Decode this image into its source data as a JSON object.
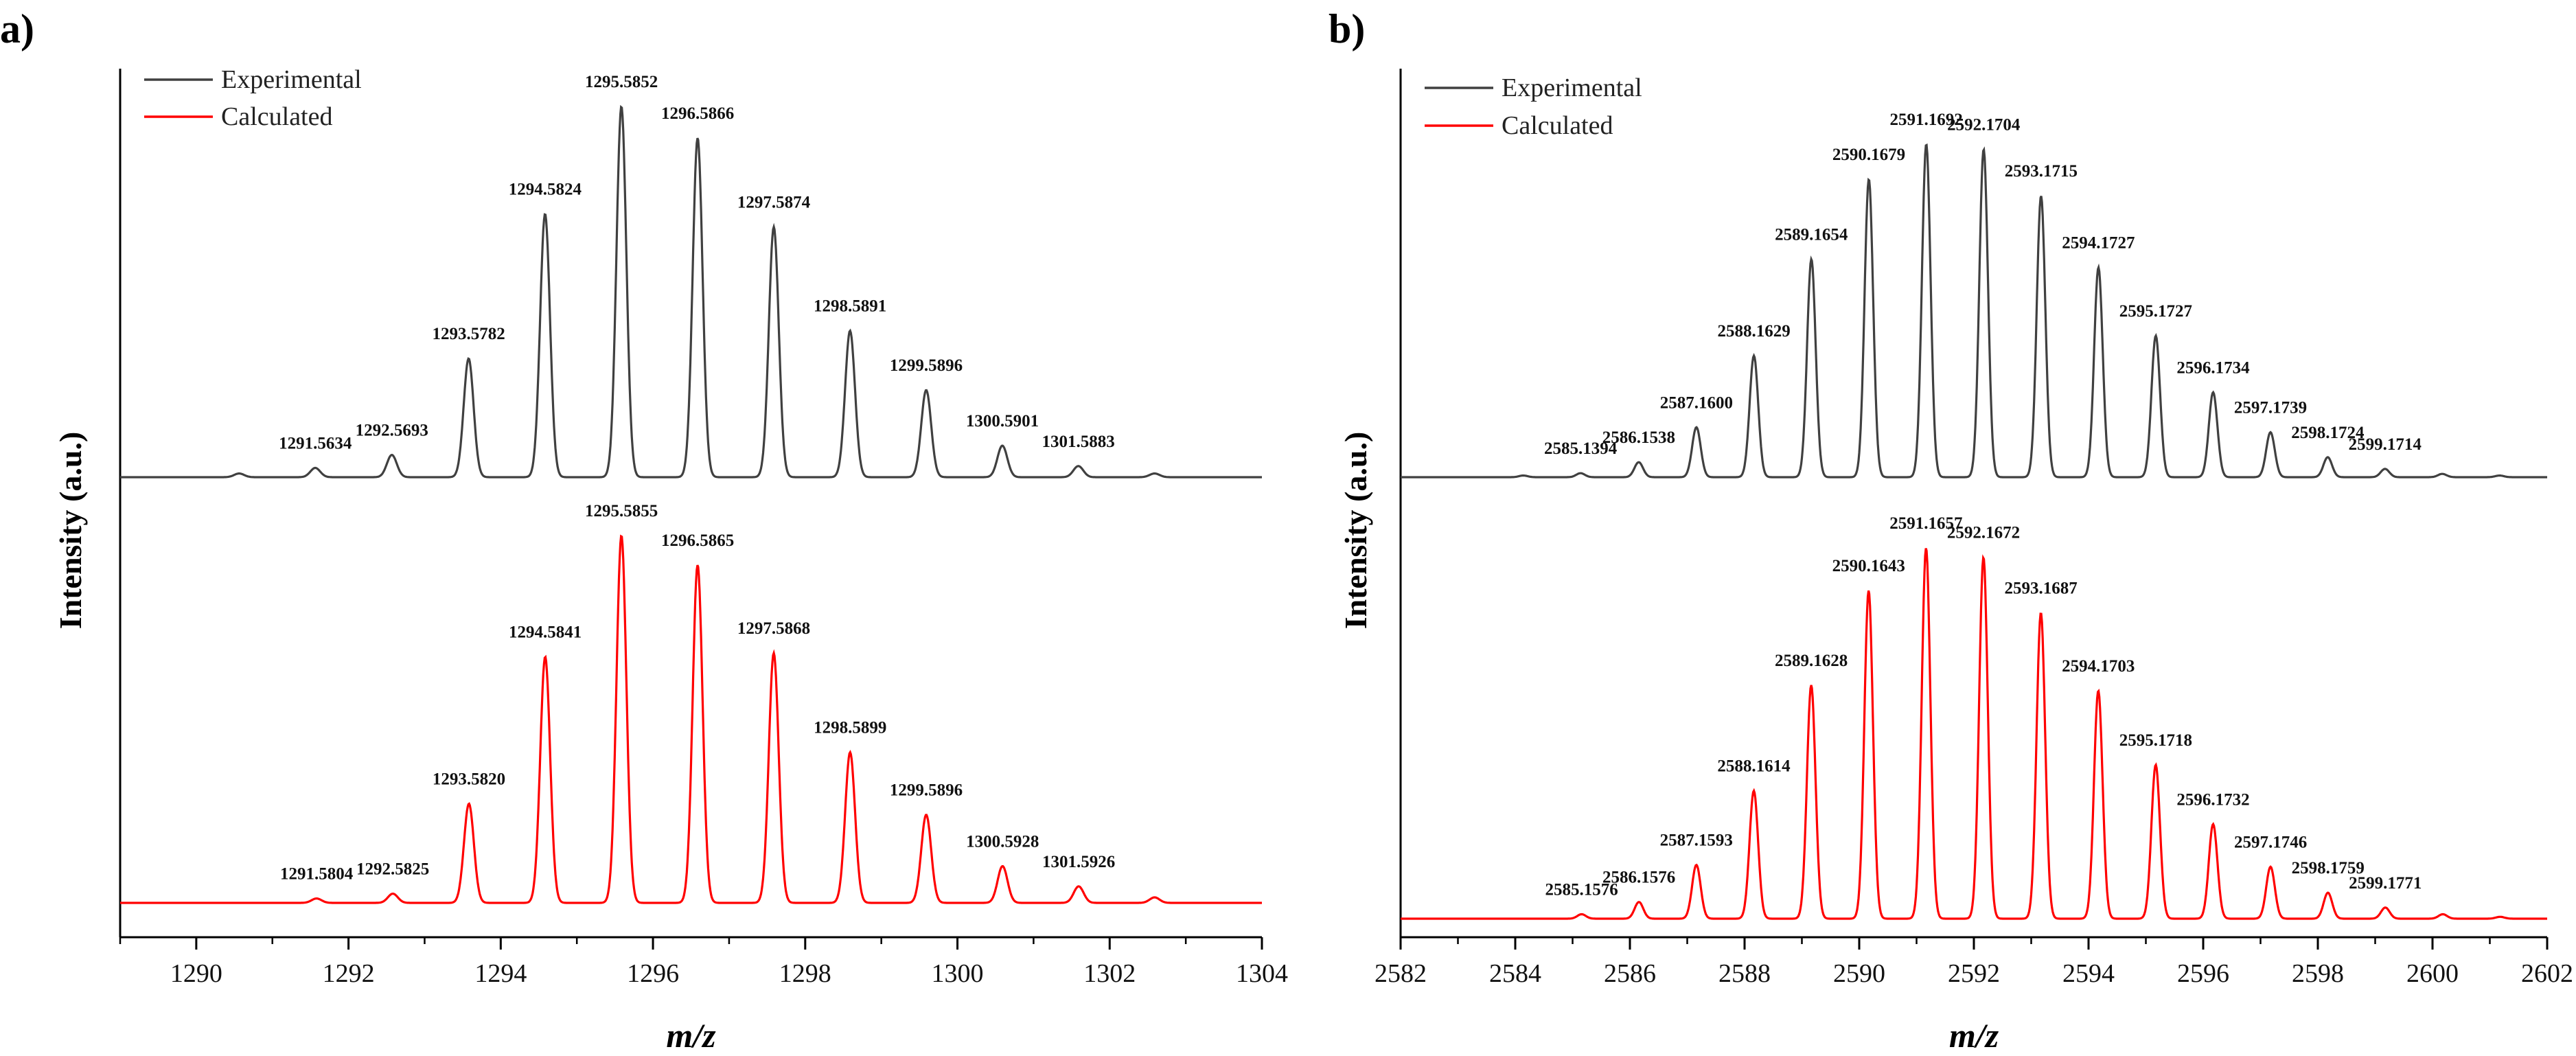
{
  "chart_data": [
    {
      "type": "line",
      "panel_label": "a)",
      "xlabel": "m/z",
      "ylabel": "Intensity (a.u.)",
      "xlim": [
        1289,
        1304
      ],
      "xticks": [
        1290,
        1292,
        1294,
        1296,
        1298,
        1300,
        1302,
        1304
      ],
      "legend": {
        "placement": "top-left",
        "entries": [
          {
            "name": "Experimental",
            "color": "#404040"
          },
          {
            "name": "Calculated",
            "color": "#ff0000"
          }
        ]
      },
      "series": [
        {
          "name": "Experimental",
          "color": "#404040",
          "peaks": [
            {
              "x": 1290.5634,
              "y": 0.01
            },
            {
              "x": 1291.5634,
              "y": 0.025,
              "label": "1291.5634"
            },
            {
              "x": 1292.5693,
              "y": 0.06,
              "label": "1292.5693"
            },
            {
              "x": 1293.5782,
              "y": 0.32,
              "label": "1293.5782"
            },
            {
              "x": 1294.5824,
              "y": 0.71,
              "label": "1294.5824"
            },
            {
              "x": 1295.5852,
              "y": 1.0,
              "label": "1295.5852"
            },
            {
              "x": 1296.5866,
              "y": 0.915,
              "label": "1296.5866"
            },
            {
              "x": 1297.5874,
              "y": 0.675,
              "label": "1297.5874"
            },
            {
              "x": 1298.5891,
              "y": 0.395,
              "label": "1298.5891"
            },
            {
              "x": 1299.5896,
              "y": 0.235,
              "label": "1299.5896"
            },
            {
              "x": 1300.5901,
              "y": 0.085,
              "label": "1300.5901"
            },
            {
              "x": 1301.5883,
              "y": 0.03,
              "label": "1301.5883"
            },
            {
              "x": 1302.59,
              "y": 0.01
            }
          ]
        },
        {
          "name": "Calculated",
          "color": "#ff0000",
          "peaks": [
            {
              "x": 1291.5804,
              "y": 0.012,
              "label": "1291.5804"
            },
            {
              "x": 1292.5825,
              "y": 0.025,
              "label": "1292.5825"
            },
            {
              "x": 1293.582,
              "y": 0.27,
              "label": "1293.5820"
            },
            {
              "x": 1294.5841,
              "y": 0.67,
              "label": "1294.5841"
            },
            {
              "x": 1295.5855,
              "y": 1.0,
              "label": "1295.5855"
            },
            {
              "x": 1296.5865,
              "y": 0.92,
              "label": "1296.5865"
            },
            {
              "x": 1297.5868,
              "y": 0.68,
              "label": "1297.5868"
            },
            {
              "x": 1298.5899,
              "y": 0.41,
              "label": "1298.5899"
            },
            {
              "x": 1299.5896,
              "y": 0.24,
              "label": "1299.5896"
            },
            {
              "x": 1300.5928,
              "y": 0.1,
              "label": "1300.5928"
            },
            {
              "x": 1301.5926,
              "y": 0.045,
              "label": "1301.5926"
            },
            {
              "x": 1302.59,
              "y": 0.015
            }
          ]
        }
      ]
    },
    {
      "type": "line",
      "panel_label": "b)",
      "xlabel": "m/z",
      "ylabel": "Intensity (a.u.)",
      "xlim": [
        2582,
        2602
      ],
      "xticks": [
        2582,
        2584,
        2586,
        2588,
        2590,
        2592,
        2594,
        2596,
        2598,
        2600,
        2602
      ],
      "legend": {
        "placement": "top-left",
        "entries": [
          {
            "name": "Experimental",
            "color": "#404040"
          },
          {
            "name": "Calculated",
            "color": "#ff0000"
          }
        ]
      },
      "series": [
        {
          "name": "Experimental",
          "color": "#404040",
          "peaks": [
            {
              "x": 2584.14,
              "y": 0.005
            },
            {
              "x": 2585.1394,
              "y": 0.012,
              "label": "2585.1394"
            },
            {
              "x": 2586.1538,
              "y": 0.045,
              "label": "2586.1538"
            },
            {
              "x": 2587.16,
              "y": 0.15,
              "label": "2587.1600"
            },
            {
              "x": 2588.1629,
              "y": 0.365,
              "label": "2588.1629"
            },
            {
              "x": 2589.1654,
              "y": 0.655,
              "label": "2589.1654"
            },
            {
              "x": 2590.1679,
              "y": 0.895,
              "label": "2590.1679"
            },
            {
              "x": 2591.1692,
              "y": 1.0,
              "label": "2591.1692"
            },
            {
              "x": 2592.1704,
              "y": 0.985,
              "label": "2592.1704"
            },
            {
              "x": 2593.1715,
              "y": 0.845,
              "label": "2593.1715"
            },
            {
              "x": 2594.1727,
              "y": 0.63,
              "label": "2594.1727"
            },
            {
              "x": 2595.1727,
              "y": 0.425,
              "label": "2595.1727"
            },
            {
              "x": 2596.1734,
              "y": 0.255,
              "label": "2596.1734"
            },
            {
              "x": 2597.1739,
              "y": 0.135,
              "label": "2597.1739"
            },
            {
              "x": 2598.1724,
              "y": 0.06,
              "label": "2598.1724"
            },
            {
              "x": 2599.1714,
              "y": 0.025,
              "label": "2599.1714"
            },
            {
              "x": 2600.17,
              "y": 0.01
            },
            {
              "x": 2601.17,
              "y": 0.005
            }
          ]
        },
        {
          "name": "Calculated",
          "color": "#ff0000",
          "peaks": [
            {
              "x": 2585.1576,
              "y": 0.012,
              "label": "2585.1576"
            },
            {
              "x": 2586.1576,
              "y": 0.045,
              "label": "2586.1576"
            },
            {
              "x": 2587.1593,
              "y": 0.145,
              "label": "2587.1593"
            },
            {
              "x": 2588.1614,
              "y": 0.345,
              "label": "2588.1614"
            },
            {
              "x": 2589.1628,
              "y": 0.63,
              "label": "2589.1628"
            },
            {
              "x": 2590.1643,
              "y": 0.885,
              "label": "2590.1643"
            },
            {
              "x": 2591.1657,
              "y": 1.0,
              "label": "2591.1657"
            },
            {
              "x": 2592.1672,
              "y": 0.975,
              "label": "2592.1672"
            },
            {
              "x": 2593.1687,
              "y": 0.825,
              "label": "2593.1687"
            },
            {
              "x": 2594.1703,
              "y": 0.615,
              "label": "2594.1703"
            },
            {
              "x": 2595.1718,
              "y": 0.415,
              "label": "2595.1718"
            },
            {
              "x": 2596.1732,
              "y": 0.255,
              "label": "2596.1732"
            },
            {
              "x": 2597.1746,
              "y": 0.14,
              "label": "2597.1746"
            },
            {
              "x": 2598.1759,
              "y": 0.07,
              "label": "2598.1759"
            },
            {
              "x": 2599.1771,
              "y": 0.03,
              "label": "2599.1771"
            },
            {
              "x": 2600.18,
              "y": 0.012
            },
            {
              "x": 2601.18,
              "y": 0.005
            }
          ]
        }
      ]
    }
  ]
}
